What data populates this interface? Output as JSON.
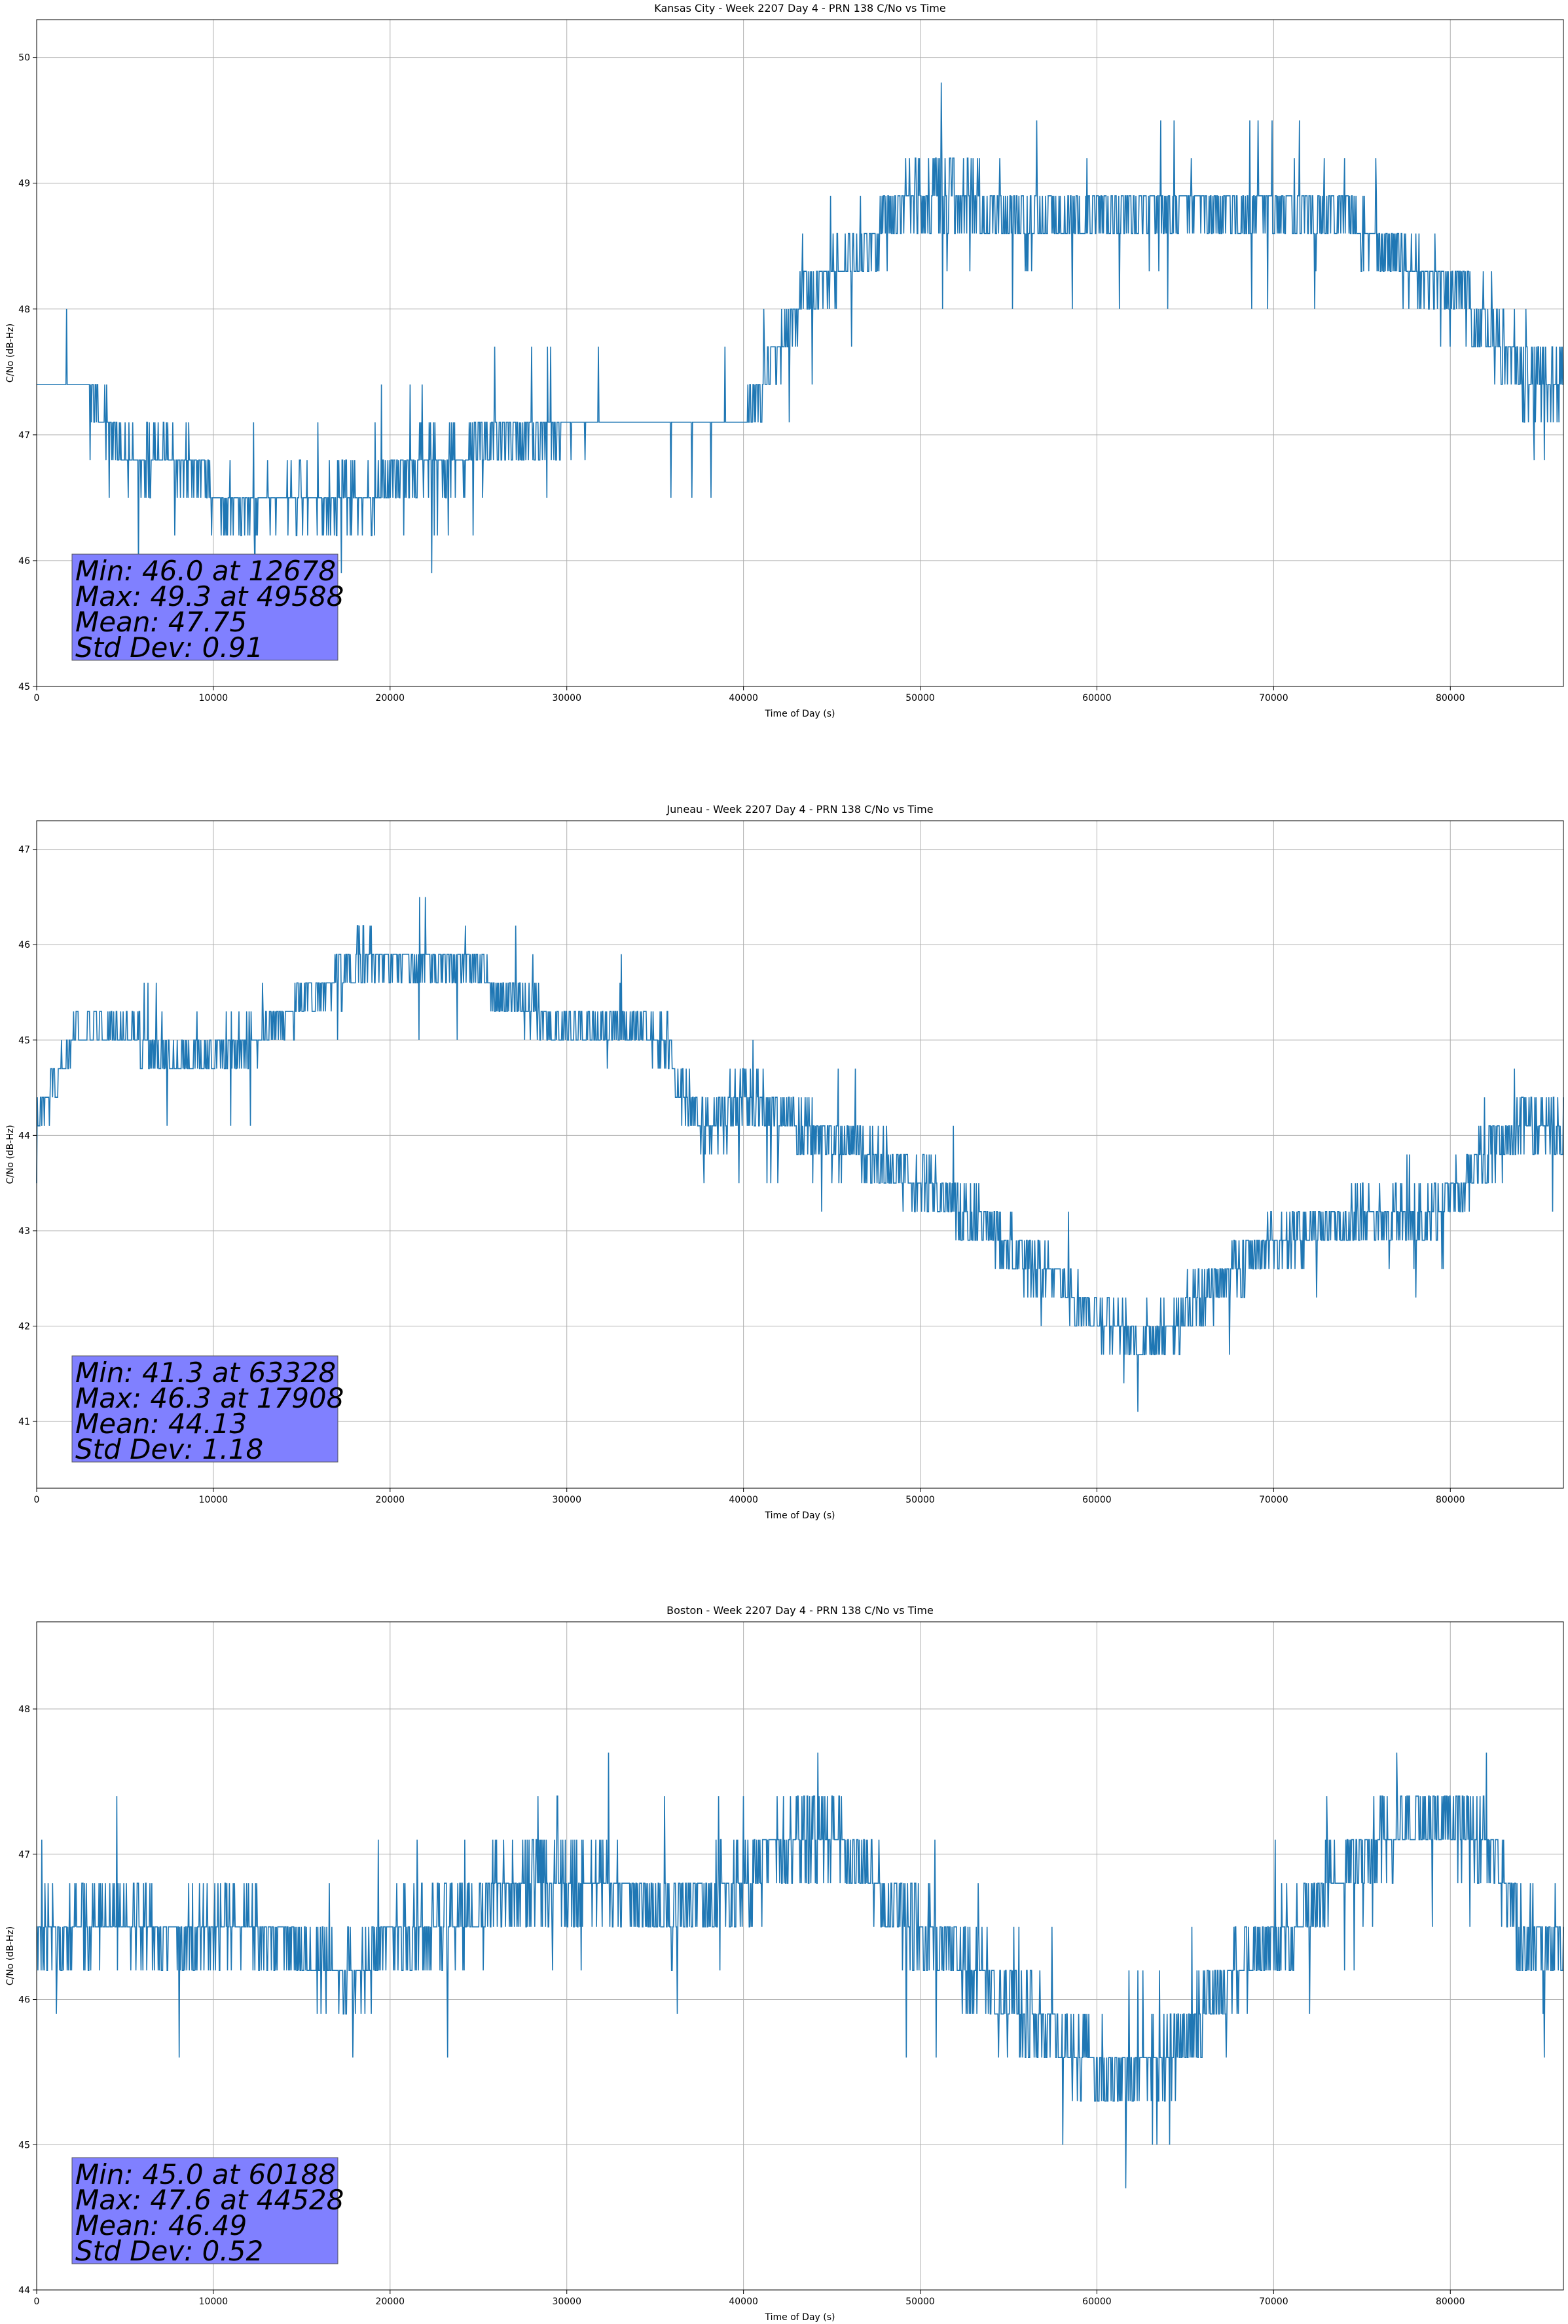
{
  "style": {
    "line_color": "#1f77b4",
    "stats_box_color": "#8080ff",
    "grid_color": "#b0b0b0"
  },
  "chart_data": [
    {
      "type": "line",
      "title": "Kansas City - Week 2207 Day 4 - PRN 138 C/No vs Time",
      "xlabel": "Time of Day (s)",
      "ylabel": "C/No (dB-Hz)",
      "xlim": [
        0,
        86400
      ],
      "ylim": [
        45,
        50.3
      ],
      "xticks": [
        0,
        10000,
        20000,
        30000,
        40000,
        50000,
        60000,
        70000,
        80000
      ],
      "yticks": [
        45,
        46,
        47,
        48,
        49,
        50
      ],
      "grid": true,
      "stats_box": {
        "position": "bottom-left",
        "lines": [
          "Min: 46.0 at 12678",
          "Max: 49.3 at 49588",
          "Mean: 47.75",
          "Std Dev: 0.91"
        ]
      },
      "series": [
        {
          "x": [
            0,
            1500,
            3000,
            3300,
            4500,
            5000,
            6000,
            7000,
            8000,
            9000,
            10000,
            12000,
            12678,
            14000,
            16000,
            18000,
            19000,
            20000,
            22000,
            24000,
            25000,
            27000,
            28000,
            30000,
            32000,
            34000,
            36000,
            38000,
            40000,
            40500,
            41000,
            42000,
            43000,
            44000,
            45000,
            46000,
            47000,
            48000,
            49000,
            49588,
            50000,
            52000,
            54000,
            56000,
            57000,
            58000,
            60000,
            62000,
            64000,
            66000,
            68000,
            70000,
            72000,
            74000,
            75000,
            76000,
            78000,
            80000,
            81000,
            82000,
            83000,
            84000,
            85000,
            86400
          ],
          "base": [
            47.4,
            47.4,
            47.4,
            47.2,
            47.0,
            46.9,
            46.8,
            46.8,
            46.8,
            46.8,
            46.5,
            46.4,
            46.4,
            46.5,
            46.5,
            46.5,
            46.5,
            46.7,
            46.8,
            46.8,
            46.9,
            47.0,
            47.0,
            47.1,
            47.1,
            47.1,
            47.1,
            47.1,
            47.1,
            47.2,
            47.4,
            47.7,
            48.0,
            48.2,
            48.3,
            48.4,
            48.5,
            48.7,
            48.8,
            48.9,
            48.9,
            48.9,
            48.8,
            48.7,
            48.7,
            48.7,
            48.7,
            48.8,
            48.8,
            48.8,
            48.8,
            48.8,
            48.8,
            48.8,
            48.6,
            48.5,
            48.3,
            48.2,
            48.0,
            47.9,
            47.7,
            47.5,
            47.4,
            47.4
          ],
          "amp": [
            0.12,
            0.12,
            0.12,
            0.15,
            0.15,
            0.18,
            0.18,
            0.18,
            0.18,
            0.18,
            0.15,
            0.15,
            0.15,
            0.15,
            0.18,
            0.18,
            0.18,
            0.2,
            0.18,
            0.18,
            0.18,
            0.15,
            0.15,
            0.15,
            0.12,
            0.12,
            0.12,
            0.12,
            0.12,
            0.15,
            0.2,
            0.2,
            0.2,
            0.2,
            0.2,
            0.2,
            0.2,
            0.25,
            0.25,
            0.25,
            0.25,
            0.25,
            0.25,
            0.25,
            0.22,
            0.2,
            0.2,
            0.2,
            0.2,
            0.2,
            0.2,
            0.2,
            0.2,
            0.2,
            0.2,
            0.2,
            0.2,
            0.2,
            0.25,
            0.25,
            0.25,
            0.25,
            0.2,
            0.2
          ]
        }
      ]
    },
    {
      "type": "line",
      "title": "Juneau - Week 2207 Day 4 - PRN 138 C/No vs Time",
      "xlabel": "Time of Day (s)",
      "ylabel": "C/No (dB-Hz)",
      "xlim": [
        0,
        86400
      ],
      "ylim": [
        40.3,
        47.3
      ],
      "xticks": [
        0,
        10000,
        20000,
        30000,
        40000,
        50000,
        60000,
        70000,
        80000
      ],
      "yticks": [
        41,
        42,
        43,
        44,
        45,
        46,
        47
      ],
      "grid": true,
      "stats_box": {
        "position": "bottom-left",
        "lines": [
          "Min: 41.3 at 63328",
          "Max: 46.3 at 17908",
          "Mean: 44.13",
          "Std Dev: 1.18"
        ]
      },
      "series": [
        {
          "x": [
            0,
            1000,
            2000,
            3000,
            5000,
            6000,
            7000,
            8000,
            10000,
            11000,
            12000,
            13000,
            14000,
            15000,
            17000,
            17908,
            20000,
            22000,
            24000,
            25000,
            26000,
            28000,
            30000,
            32000,
            34000,
            35000,
            36000,
            37000,
            38000,
            39000,
            40000,
            42000,
            44000,
            46000,
            48000,
            50000,
            52000,
            54000,
            56000,
            58000,
            60000,
            62000,
            63328,
            64000,
            66000,
            68000,
            70000,
            72000,
            74000,
            76000,
            78000,
            80000,
            82000,
            84000,
            86400
          ],
          "base": [
            44.1,
            44.5,
            45.0,
            45.1,
            45.1,
            45.0,
            44.8,
            44.8,
            44.8,
            45.0,
            45.0,
            45.1,
            45.2,
            45.4,
            45.6,
            45.8,
            45.8,
            45.8,
            45.8,
            45.8,
            45.5,
            45.3,
            45.1,
            45.1,
            45.1,
            45.0,
            44.7,
            44.3,
            44.1,
            44.2,
            44.4,
            44.2,
            44.0,
            43.9,
            43.7,
            43.5,
            43.3,
            43.0,
            42.7,
            42.4,
            42.1,
            41.9,
            41.9,
            42.0,
            42.3,
            42.6,
            42.9,
            43.0,
            43.1,
            43.1,
            43.1,
            43.4,
            43.8,
            44.1,
            44.0
          ],
          "amp": [
            0.15,
            0.2,
            0.2,
            0.2,
            0.2,
            0.2,
            0.2,
            0.2,
            0.2,
            0.2,
            0.2,
            0.2,
            0.2,
            0.2,
            0.2,
            0.25,
            0.2,
            0.2,
            0.2,
            0.2,
            0.2,
            0.2,
            0.2,
            0.2,
            0.2,
            0.2,
            0.25,
            0.25,
            0.25,
            0.25,
            0.25,
            0.25,
            0.25,
            0.25,
            0.25,
            0.25,
            0.25,
            0.25,
            0.25,
            0.25,
            0.25,
            0.25,
            0.3,
            0.25,
            0.25,
            0.25,
            0.25,
            0.25,
            0.25,
            0.25,
            0.25,
            0.25,
            0.25,
            0.25,
            0.25
          ]
        }
      ]
    },
    {
      "type": "line",
      "title": "Boston - Week 2207 Day 4 - PRN 138 C/No vs Time",
      "xlabel": "Time of Day (s)",
      "ylabel": "C/No (dB-Hz)",
      "xlim": [
        0,
        86400
      ],
      "ylim": [
        44,
        48.6
      ],
      "xticks": [
        0,
        10000,
        20000,
        30000,
        40000,
        50000,
        60000,
        70000,
        80000
      ],
      "yticks": [
        44,
        45,
        46,
        47,
        48
      ],
      "grid": true,
      "stats_box": {
        "position": "bottom-left",
        "lines": [
          "Min: 45.0 at 60188",
          "Max: 47.6 at 44528",
          "Mean: 46.49",
          "Std Dev: 0.52"
        ]
      },
      "series": [
        {
          "x": [
            0,
            2000,
            4000,
            6000,
            8000,
            10000,
            12000,
            14000,
            16000,
            18000,
            20000,
            22000,
            24000,
            26000,
            28000,
            30000,
            32000,
            34000,
            36000,
            38000,
            40000,
            42000,
            44528,
            46000,
            48000,
            50000,
            52000,
            54000,
            56000,
            58000,
            60188,
            62000,
            64000,
            66000,
            68000,
            70000,
            72000,
            74000,
            76000,
            78000,
            80000,
            82000,
            83000,
            84000,
            85000,
            86400
          ],
          "base": [
            46.4,
            46.5,
            46.6,
            46.5,
            46.4,
            46.5,
            46.5,
            46.4,
            46.2,
            46.2,
            46.4,
            46.5,
            46.5,
            46.8,
            46.8,
            46.8,
            46.8,
            46.7,
            46.6,
            46.7,
            46.8,
            47.0,
            47.2,
            47.0,
            46.7,
            46.5,
            46.3,
            46.1,
            45.9,
            45.7,
            45.5,
            45.5,
            45.6,
            45.9,
            46.2,
            46.4,
            46.6,
            46.9,
            47.1,
            47.2,
            47.2,
            47.1,
            46.8,
            46.5,
            46.4,
            46.3
          ],
          "amp": [
            0.2,
            0.2,
            0.2,
            0.2,
            0.2,
            0.2,
            0.2,
            0.2,
            0.2,
            0.2,
            0.2,
            0.2,
            0.2,
            0.22,
            0.22,
            0.22,
            0.22,
            0.22,
            0.22,
            0.22,
            0.22,
            0.22,
            0.22,
            0.2,
            0.2,
            0.2,
            0.2,
            0.2,
            0.2,
            0.2,
            0.22,
            0.2,
            0.2,
            0.2,
            0.2,
            0.2,
            0.2,
            0.2,
            0.2,
            0.2,
            0.2,
            0.2,
            0.25,
            0.25,
            0.25,
            0.25
          ]
        }
      ]
    }
  ]
}
